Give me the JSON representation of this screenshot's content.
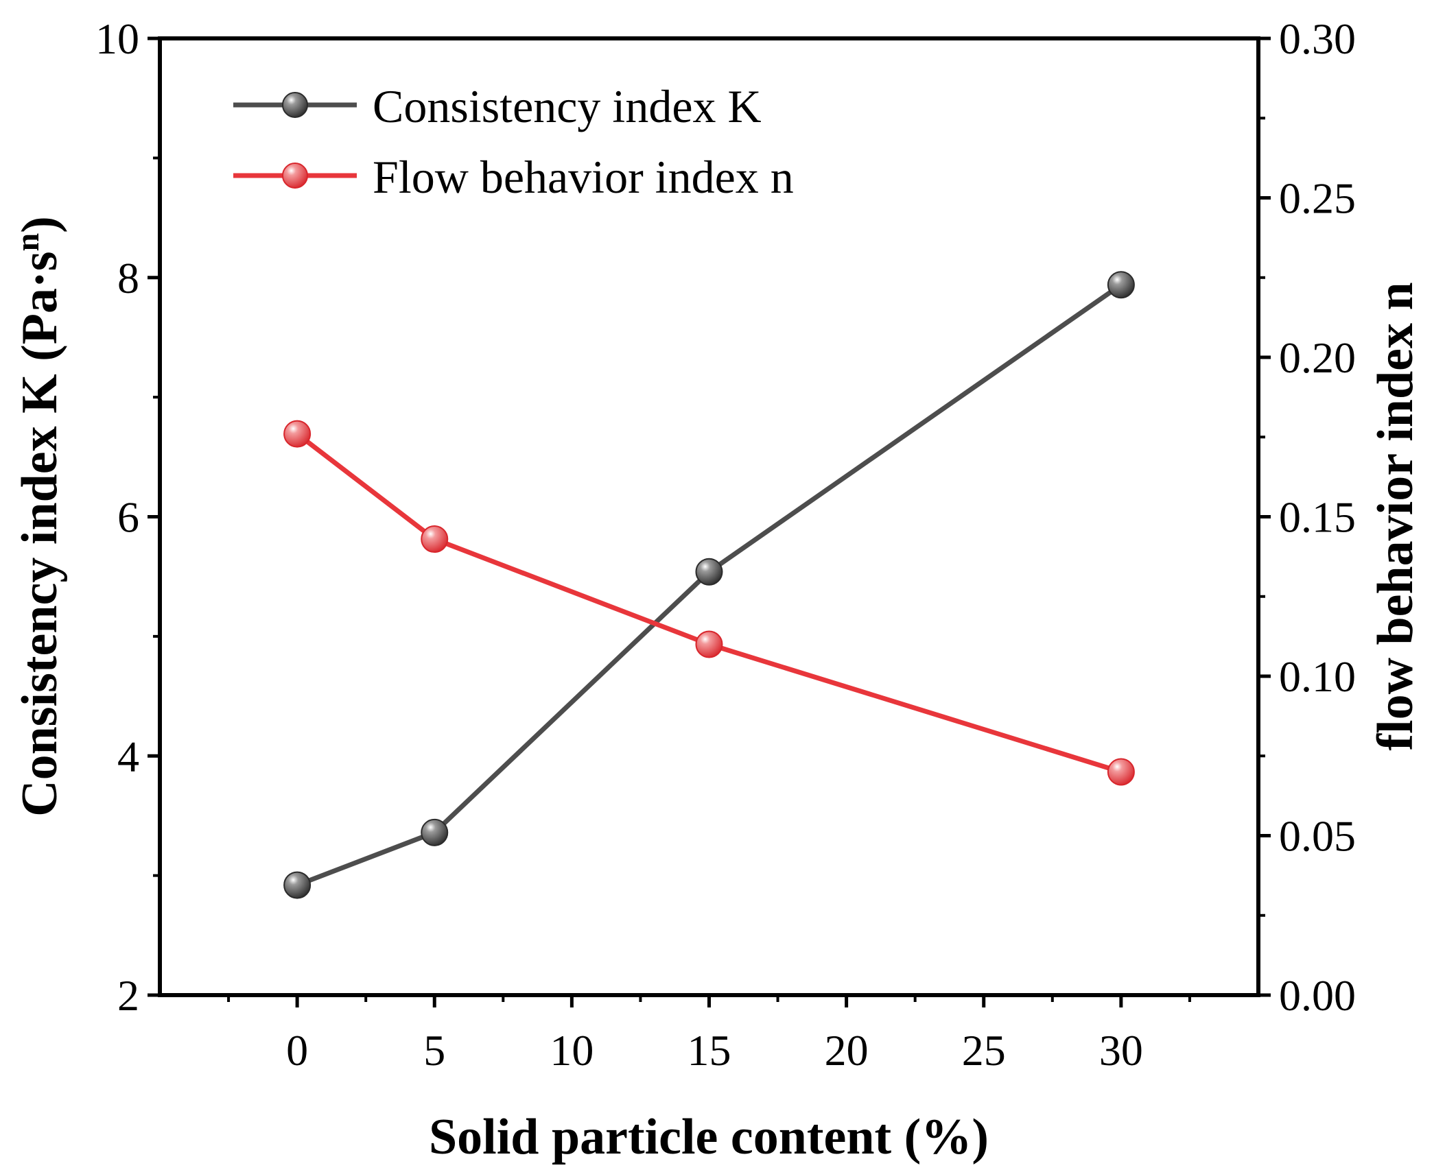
{
  "chart_data": {
    "type": "line",
    "title": "",
    "xlabel": "Solid particle content (%)",
    "ylabel": "Consistency index K (Pa·s",
    "ylabel_superscript": "n",
    "ylabel_close": ")",
    "y2label": "flow behavior index n",
    "xlim": [
      -5,
      35
    ],
    "ylim": [
      2,
      10
    ],
    "y2lim": [
      0.0,
      0.3
    ],
    "x_ticks": [
      "0",
      "5",
      "10",
      "15",
      "20",
      "25",
      "30"
    ],
    "y_ticks": [
      "2",
      "4",
      "6",
      "8",
      "10"
    ],
    "y2_ticks": [
      "0.00",
      "0.05",
      "0.10",
      "0.15",
      "0.20",
      "0.25",
      "0.30"
    ],
    "legend_position": "top-left",
    "series": [
      {
        "name": "Consistency index K",
        "axis": "left",
        "color": "#4d4d4d",
        "x": [
          0,
          5,
          15,
          30
        ],
        "values": [
          2.92,
          3.36,
          5.54,
          7.94
        ]
      },
      {
        "name": "Flow behavior index n",
        "axis": "right",
        "color": "#e8363b",
        "x": [
          0,
          5,
          15,
          30
        ],
        "values": [
          0.176,
          0.143,
          0.11,
          0.07
        ]
      }
    ]
  }
}
